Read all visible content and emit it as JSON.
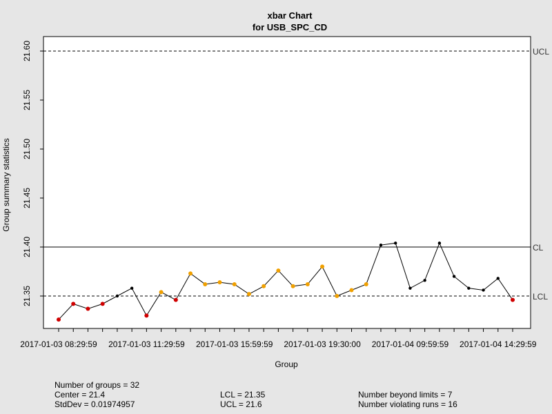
{
  "chart_data": {
    "type": "line",
    "title": "xbar Chart",
    "subtitle": "for USB_SPC_CD",
    "xlabel": "Group",
    "ylabel": "Group summary statistics",
    "ylim": [
      21.32,
      21.61
    ],
    "yticks": [
      "21.35",
      "21.40",
      "21.45",
      "21.50",
      "21.55",
      "21.60"
    ],
    "xtick_labels": [
      "2017-01-03 08:29:59",
      "2017-01-03 11:29:59",
      "2017-01-03 15:59:59",
      "2017-01-03 19:30:00",
      "2017-01-04 09:59:59",
      "2017-01-04 14:29:59"
    ],
    "xtick_groups": [
      1,
      7,
      13,
      19,
      25,
      31
    ],
    "values": [
      21.326,
      21.342,
      21.337,
      21.342,
      21.35,
      21.358,
      21.33,
      21.354,
      21.346,
      21.373,
      21.362,
      21.364,
      21.362,
      21.352,
      21.36,
      21.376,
      21.36,
      21.362,
      21.38,
      21.35,
      21.356,
      21.362,
      21.402,
      21.404,
      21.358,
      21.366,
      21.404,
      21.37,
      21.358,
      21.356,
      21.368,
      21.346
    ],
    "point_status": [
      "beyond",
      "beyond",
      "beyond",
      "beyond",
      "normal",
      "normal",
      "beyond",
      "run",
      "beyond",
      "run",
      "run",
      "run",
      "run",
      "run",
      "run",
      "run",
      "run",
      "run",
      "run",
      "run",
      "run",
      "run",
      "normal",
      "normal",
      "normal",
      "normal",
      "normal",
      "normal",
      "normal",
      "normal",
      "normal",
      "beyond"
    ],
    "lines": [
      {
        "label": "UCL",
        "value": 21.6,
        "style": "dashed"
      },
      {
        "label": "CL",
        "value": 21.4,
        "style": "solid"
      },
      {
        "label": "LCL",
        "value": 21.35,
        "style": "dashed"
      }
    ],
    "colors": {
      "normal": "#000000",
      "beyond": "#d00000",
      "run": "#f0a000",
      "background": "#e6e6e6",
      "plot": "#ffffff"
    }
  },
  "stats": {
    "groups": "Number of groups = 32",
    "center": "Center = 21.4",
    "stddev": "StdDev = 0.01974957",
    "lcl": "LCL = 21.35",
    "ucl": "UCL = 21.6",
    "beyond": "Number beyond limits = 7",
    "runs": "Number violating runs = 16"
  }
}
